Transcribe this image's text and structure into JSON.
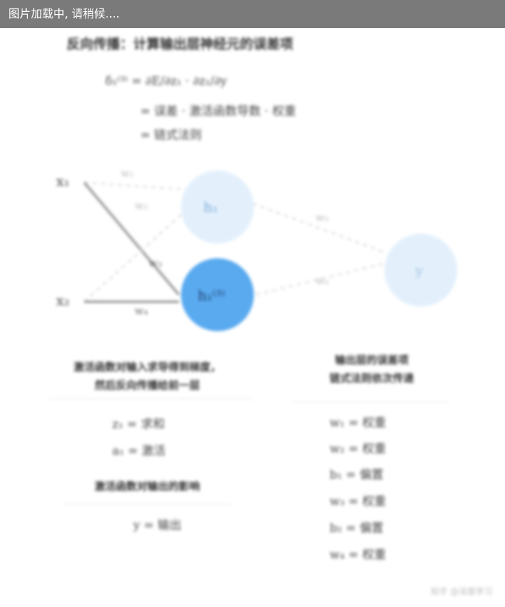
{
  "loading_text": "图片加载中, 请稍候....",
  "title": "反向传播：计算输出层神经元的误差项",
  "formulas": [
    "δ₁⁽³⁾ = ∂E/∂z₁ · ∂z₁/∂y",
    "= 误差 · 激活函数导数 · 权重",
    "= 链式法则"
  ],
  "diagram": {
    "nodes": {
      "x1": "x₁",
      "x2": "x₂",
      "h1": "h₁",
      "h2": "h₁⁽³⁾",
      "out": "y"
    },
    "edge_labels": {
      "w1": "w₁",
      "w2": "w₂",
      "w3": "w₃",
      "w4": "w₄",
      "w5": "w₅",
      "w6": "w₆"
    },
    "colors": {
      "highlight": "#5aaaf0",
      "faded": "#e3f0fc",
      "line": "#9a9a9a"
    }
  },
  "left_section": {
    "heading_line1": "激活函数对输入求导得到梯度，",
    "heading_line2": "然后反向传播给前一层",
    "eqs": [
      "z₁ = 求和",
      "a₁ = 激活"
    ],
    "heading2": "激活函数对输出的影响",
    "eq_final": "y = 输出"
  },
  "right_section": {
    "heading_line1": "输出层的误差项",
    "heading_line2": "链式法则依次传递",
    "eqs": [
      "w₁ = 权重",
      "w₂ = 权重",
      "b₁ = 偏置",
      "w₃ = 权重",
      "b₂ = 偏置",
      "w₄ = 权重"
    ]
  },
  "watermark": "知乎 @深度学习"
}
